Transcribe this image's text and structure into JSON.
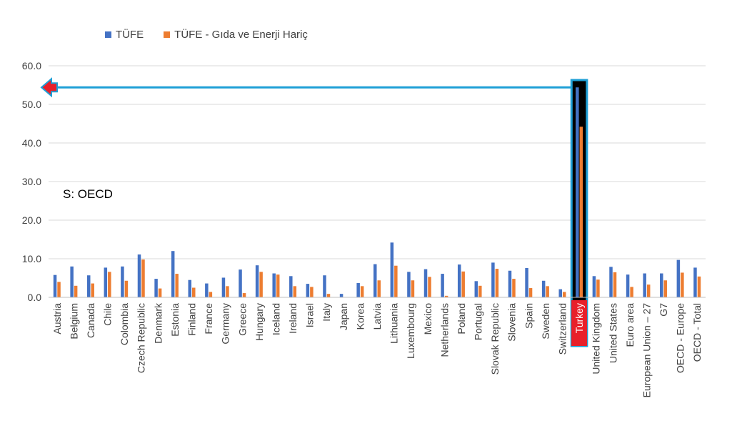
{
  "source_note": "S: OECD",
  "colors": {
    "series1": "#4472c4",
    "series2": "#ed7d31",
    "highlight_bg": "#000000",
    "highlight_border": "#1e9fd6",
    "highlight_label_bg": "#e8202a",
    "arrow": "#1e9fd6",
    "arrow_head": "#e8202a"
  },
  "chart_data": {
    "type": "bar",
    "title": "",
    "xlabel": "",
    "ylabel": "",
    "ylim": [
      0,
      60
    ],
    "yticks": [
      "0.0",
      "10.0",
      "20.0",
      "30.0",
      "40.0",
      "50.0",
      "60.0"
    ],
    "grid": true,
    "legend_position": "top-left",
    "highlight_category": "Turkey",
    "categories": [
      "Austria",
      "Belgium",
      "Canada",
      "Chile",
      "Colombia",
      "Czech Republic",
      "Denmark",
      "Estonia",
      "Finland",
      "France",
      "Germany",
      "Greece",
      "Hungary",
      "Iceland",
      "Ireland",
      "Israel",
      "Italy",
      "Japan",
      "Korea",
      "Latvia",
      "Lithuania",
      "Luxembourg",
      "Mexico",
      "Netherlands",
      "Poland",
      "Portugal",
      "Slovak Republic",
      "Slovenia",
      "Spain",
      "Sweden",
      "Switzerland",
      "Turkey",
      "United Kingdom",
      "United States",
      "Euro area",
      "European Union – 27",
      "G7",
      "OECD - Europe",
      "OECD - Total"
    ],
    "series": [
      {
        "name": "TÜFE",
        "values": [
          5.8,
          8.0,
          5.7,
          7.7,
          8.0,
          11.1,
          4.8,
          12.0,
          4.5,
          3.6,
          5.1,
          7.2,
          8.3,
          6.2,
          5.5,
          3.5,
          5.7,
          0.9,
          3.7,
          8.6,
          14.2,
          6.6,
          7.3,
          6.1,
          8.5,
          4.2,
          9.0,
          6.9,
          7.6,
          4.3,
          2.1,
          54.4,
          5.5,
          7.9,
          5.9,
          6.2,
          6.2,
          9.7,
          7.7
        ]
      },
      {
        "name": "TÜFE - Gıda ve Enerji Hariç",
        "values": [
          4.0,
          3.0,
          3.6,
          6.6,
          4.3,
          9.8,
          2.3,
          6.1,
          2.5,
          1.4,
          2.9,
          1.1,
          6.6,
          5.9,
          2.9,
          2.7,
          0.9,
          0.0,
          2.9,
          4.4,
          8.2,
          4.4,
          5.3,
          0.4,
          6.7,
          3.0,
          7.4,
          4.8,
          2.4,
          2.9,
          1.4,
          44.2,
          4.6,
          6.5,
          2.7,
          3.3,
          4.4,
          6.4,
          5.4
        ]
      }
    ]
  }
}
